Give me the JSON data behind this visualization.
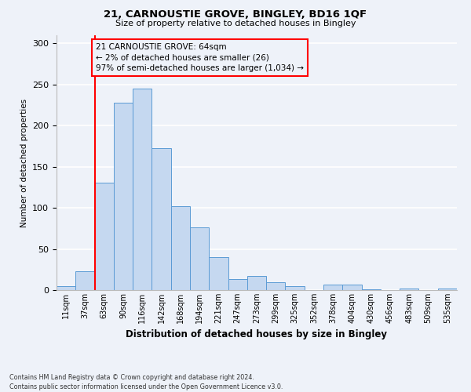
{
  "title1": "21, CARNOUSTIE GROVE, BINGLEY, BD16 1QF",
  "title2": "Size of property relative to detached houses in Bingley",
  "xlabel": "Distribution of detached houses by size in Bingley",
  "ylabel": "Number of detached properties",
  "bin_labels": [
    "11sqm",
    "37sqm",
    "63sqm",
    "90sqm",
    "116sqm",
    "142sqm",
    "168sqm",
    "194sqm",
    "221sqm",
    "247sqm",
    "273sqm",
    "299sqm",
    "325sqm",
    "352sqm",
    "378sqm",
    "404sqm",
    "430sqm",
    "456sqm",
    "483sqm",
    "509sqm",
    "535sqm"
  ],
  "bar_heights": [
    5,
    23,
    131,
    228,
    245,
    173,
    102,
    76,
    40,
    13,
    17,
    10,
    5,
    0,
    7,
    7,
    1,
    0,
    2,
    0,
    2
  ],
  "bar_color": "#c5d8f0",
  "bar_edge_color": "#5b9bd5",
  "vline_x": 2,
  "vline_color": "red",
  "annotation_line1": "21 CARNOUSTIE GROVE: 64sqm",
  "annotation_line2": "← 2% of detached houses are smaller (26)",
  "annotation_line3": "97% of semi-detached houses are larger (1,034) →",
  "annotation_box_color": "red",
  "ylim": [
    0,
    310
  ],
  "yticks": [
    0,
    50,
    100,
    150,
    200,
    250,
    300
  ],
  "footer": "Contains HM Land Registry data © Crown copyright and database right 2024.\nContains public sector information licensed under the Open Government Licence v3.0.",
  "bg_color": "#eef2f9"
}
